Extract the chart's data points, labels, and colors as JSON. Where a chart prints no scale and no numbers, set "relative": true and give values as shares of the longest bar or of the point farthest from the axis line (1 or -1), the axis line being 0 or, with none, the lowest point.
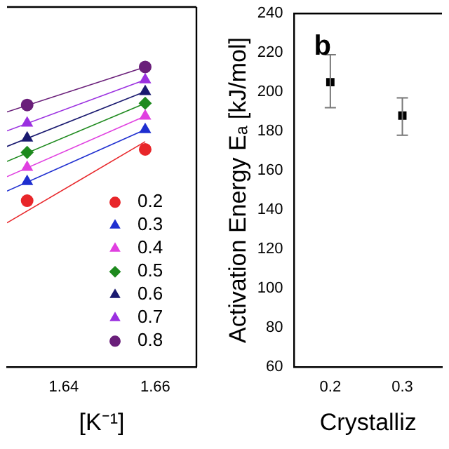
{
  "chart_data": [
    {
      "type": "scatter",
      "relative": true,
      "xlabel": "[K⁻¹]",
      "xlim": [
        1.6276,
        1.669
      ],
      "xticks": [
        1.64,
        1.66
      ],
      "legend": "bottom right",
      "tick_labels": "x",
      "series": [
        {
          "name": "0.2",
          "color": "#e8262a",
          "marker": "circle",
          "x": [
            1.632,
            1.6578
          ],
          "values": [
            0.554,
            0.725
          ]
        },
        {
          "name": "0.3",
          "color": "#1f2fd0",
          "marker": "triangle",
          "x": [
            1.632,
            1.6578
          ],
          "values": [
            0.618,
            0.791
          ]
        },
        {
          "name": "0.4",
          "color": "#e040e0",
          "marker": "triangle",
          "x": [
            1.632,
            1.6578
          ],
          "values": [
            0.665,
            0.836
          ]
        },
        {
          "name": "0.5",
          "color": "#1e8a1e",
          "marker": "diamond",
          "x": [
            1.632,
            1.6578
          ],
          "values": [
            0.715,
            0.879
          ]
        },
        {
          "name": "0.6",
          "color": "#1a1a70",
          "marker": "triangle",
          "x": [
            1.632,
            1.6578
          ],
          "values": [
            0.763,
            0.918
          ]
        },
        {
          "name": "0.7",
          "color": "#9b30e0",
          "marker": "triangle",
          "x": [
            1.632,
            1.6578
          ],
          "values": [
            0.813,
            0.957
          ]
        },
        {
          "name": "0.8",
          "color": "#6a1f7a",
          "marker": "circle",
          "x": [
            1.632,
            1.6578
          ],
          "values": [
            0.873,
            1.0
          ]
        },
        {
          "type": "line",
          "color": "#e8262a",
          "x": [
            1.6276,
            1.6578
          ],
          "values": [
            0.48,
            0.751
          ]
        },
        {
          "type": "line",
          "color": "#1f2fd0",
          "x": [
            1.6276,
            1.6578
          ],
          "values": [
            0.586,
            0.791
          ]
        },
        {
          "type": "line",
          "color": "#e040e0",
          "x": [
            1.6276,
            1.6578
          ],
          "values": [
            0.634,
            0.836
          ]
        },
        {
          "type": "line",
          "color": "#1e8a1e",
          "x": [
            1.6276,
            1.6578
          ],
          "values": [
            0.685,
            0.879
          ]
        },
        {
          "type": "line",
          "color": "#1a1a70",
          "x": [
            1.6276,
            1.6578
          ],
          "values": [
            0.735,
            0.918
          ]
        },
        {
          "type": "line",
          "color": "#9b30e0",
          "x": [
            1.6276,
            1.6578
          ],
          "values": [
            0.787,
            0.957
          ]
        },
        {
          "type": "line",
          "color": "#6a1f7a",
          "x": [
            1.6276,
            1.6578
          ],
          "values": [
            0.85,
            1.0
          ]
        }
      ]
    },
    {
      "type": "scatter",
      "ylabel": "Activation Energy Eₐ [kJ/mol]",
      "xlabel": "Crystalliz",
      "annotations": [
        "b"
      ],
      "marker": "square",
      "color": "#000000",
      "x": [
        0.2,
        0.3
      ],
      "values": [
        205,
        188
      ],
      "errors": [
        [
          192,
          219
        ],
        [
          178,
          197
        ]
      ],
      "xlim": [
        0.15,
        0.355
      ],
      "xticks": [
        0.2,
        0.3
      ],
      "ylim": [
        60,
        240
      ],
      "yticks": [
        60,
        80,
        100,
        120,
        140,
        160,
        180,
        200,
        220,
        240
      ]
    }
  ]
}
